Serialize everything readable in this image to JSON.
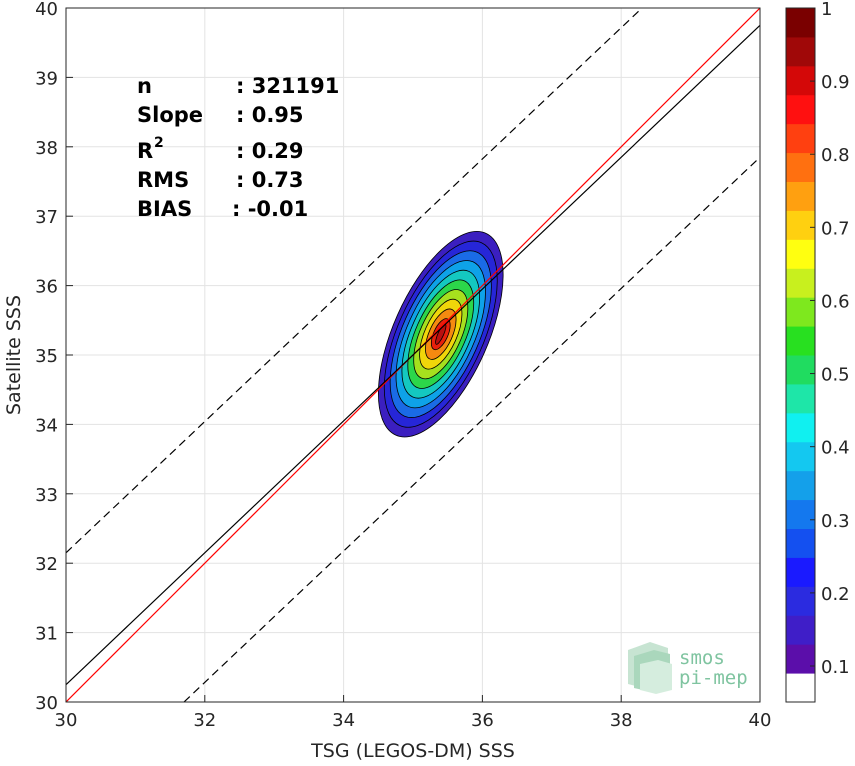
{
  "chart_data": {
    "type": "contour",
    "xlabel": "TSG (LEGOS-DM) SSS",
    "ylabel": "Satellite SSS",
    "xlim": [
      30,
      40
    ],
    "ylim": [
      30,
      40
    ],
    "x_ticks": [
      "30",
      "32",
      "34",
      "36",
      "38",
      "40"
    ],
    "y_ticks": [
      "30",
      "31",
      "32",
      "33",
      "34",
      "35",
      "36",
      "37",
      "38",
      "39",
      "40"
    ],
    "grid": true,
    "stats": [
      {
        "label": "n",
        "value": ": 321191"
      },
      {
        "label": "Slope",
        "value": ": 0.95"
      },
      {
        "label": "R",
        "sup": "2",
        "value": ": 0.29"
      },
      {
        "label": "RMS",
        "value": ": 0.73"
      },
      {
        "label": "BIAS",
        "value": ": -0.01"
      }
    ],
    "lines": [
      {
        "role": "one-to-one",
        "color": "#ff0000",
        "points": [
          [
            30,
            30
          ],
          [
            40,
            40
          ]
        ]
      },
      {
        "role": "regression",
        "color": "#000000",
        "points": [
          [
            30,
            30.25
          ],
          [
            40,
            39.75
          ]
        ]
      },
      {
        "role": "upper-bound",
        "color": "#000000",
        "dash": true,
        "points": [
          [
            30,
            32.15
          ],
          [
            38.3,
            40
          ]
        ]
      },
      {
        "role": "lower-bound",
        "color": "#000000",
        "dash": true,
        "points": [
          [
            31.7,
            30
          ],
          [
            40,
            37.85
          ]
        ]
      }
    ],
    "density": {
      "center": [
        35.4,
        35.3
      ],
      "levels": [
        0.05,
        0.1,
        0.2,
        0.3,
        0.4,
        0.5,
        0.6,
        0.7,
        0.8,
        0.9
      ],
      "level_colors": [
        "#3b1fc0",
        "#2626d8",
        "#1a6be6",
        "#0ea2e8",
        "#14c8c0",
        "#2cd64a",
        "#a6e01e",
        "#f0d60a",
        "#f58a10",
        "#e8200c"
      ],
      "peak_color": "#b81010",
      "x_extent": [
        34.2,
        36.4
      ],
      "y_extent": [
        33.7,
        36.95
      ]
    },
    "colorbar": {
      "range": [
        0,
        1
      ],
      "ticks": [
        "0.1",
        "0.2",
        "0.3",
        "0.4",
        "0.5",
        "0.6",
        "0.7",
        "0.8",
        "0.9",
        "1"
      ],
      "colors": [
        "#5b0eaa",
        "#3f1ec8",
        "#2b2be0",
        "#1a1aff",
        "#1450f0",
        "#1478ee",
        "#14a0ea",
        "#14c8f0",
        "#10f0f0",
        "#1ee6a8",
        "#20dc60",
        "#28e020",
        "#7ee81e",
        "#c8f01e",
        "#ffff10",
        "#ffd010",
        "#ffa010",
        "#ff7010",
        "#ff4010",
        "#ff1010",
        "#d40808",
        "#a00808",
        "#7a0000"
      ]
    }
  },
  "logo": {
    "line1": "smos",
    "line2": "pi-mep"
  }
}
